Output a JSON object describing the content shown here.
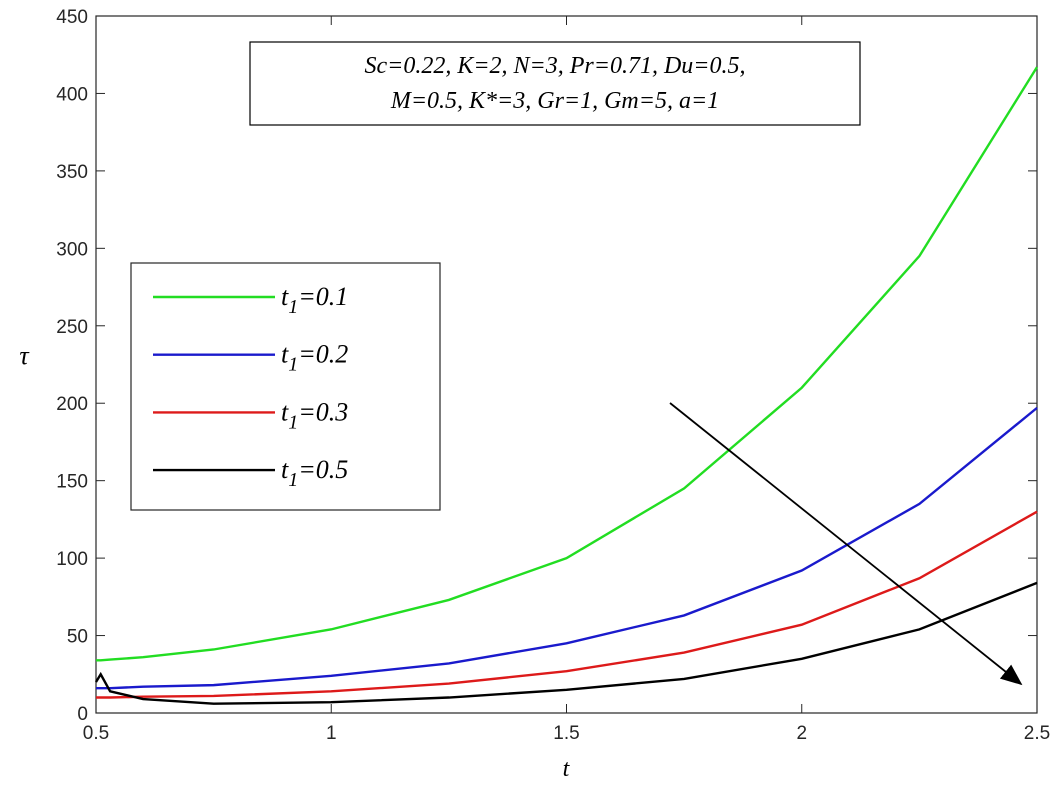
{
  "chart_data": {
    "type": "line",
    "xlabel": "t",
    "ylabel": "τ",
    "annotation": [
      "Sc=0.22, K=2, N=3, Pr=0.71, Du=0.5,",
      "M=0.5, K*=3, Gr=1, Gm=5, a=1"
    ],
    "x": [
      0.5,
      0.51,
      0.53,
      0.6,
      0.75,
      1,
      1.25,
      1.5,
      1.75,
      2,
      2.25,
      2.5
    ],
    "series": [
      {
        "name": "t1=0.1",
        "color": "#22dd22",
        "values": [
          34,
          34,
          34.5,
          36,
          41,
          54,
          73,
          100,
          145,
          210,
          295,
          417
        ]
      },
      {
        "name": "t1=0.2",
        "color": "#1a1acc",
        "values": [
          16,
          16,
          16,
          17,
          18,
          24,
          32,
          45,
          63,
          92,
          135,
          197
        ]
      },
      {
        "name": "t1=0.3",
        "color": "#dd1a1a",
        "values": [
          10,
          10,
          10,
          10.5,
          11,
          14,
          19,
          27,
          39,
          57,
          87,
          130
        ]
      },
      {
        "name": "t1=0.5",
        "color": "#000000",
        "values": [
          20,
          25,
          14,
          9,
          6,
          7,
          10,
          15,
          22,
          35,
          54,
          84
        ]
      }
    ],
    "xlim": [
      0.5,
      2.5
    ],
    "xticks": [
      0.5,
      1,
      1.5,
      2,
      2.5
    ],
    "ylim": [
      0,
      450
    ],
    "yticks": [
      0,
      50,
      100,
      150,
      200,
      250,
      300,
      350,
      400,
      450
    ]
  }
}
